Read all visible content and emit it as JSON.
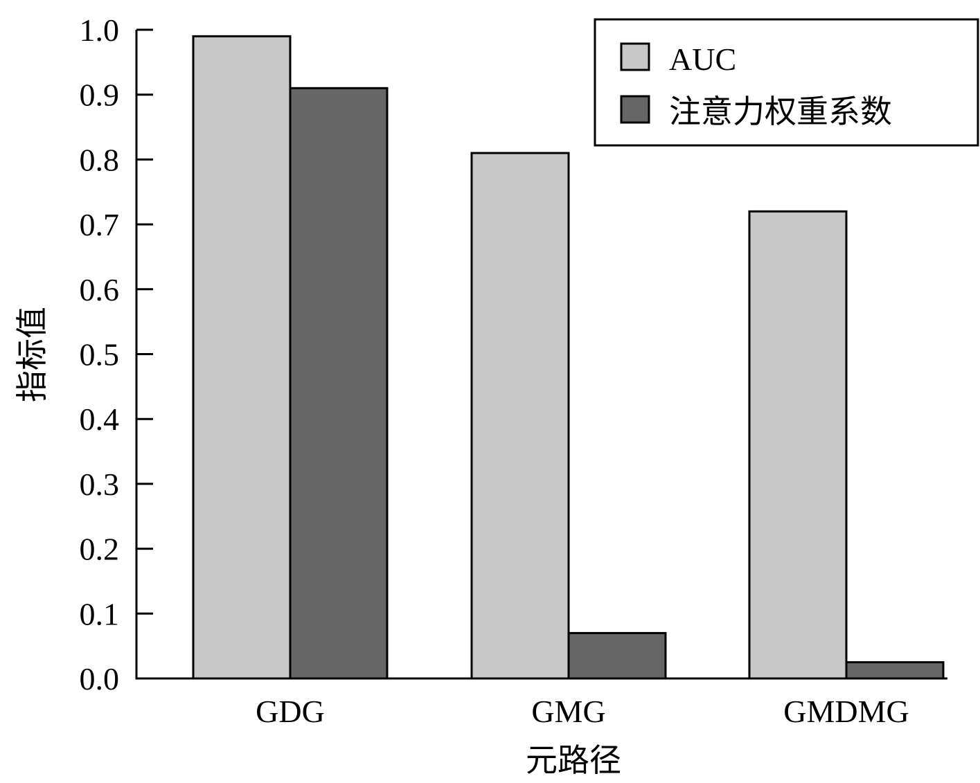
{
  "chart_data": {
    "type": "bar",
    "title": "",
    "xlabel": "元路径",
    "ylabel": "指标值",
    "categories": [
      "GDG",
      "GMG",
      "GMDMG"
    ],
    "series": [
      {
        "name": "AUC",
        "values": [
          0.99,
          0.81,
          0.72
        ],
        "color": "#c8c8c8"
      },
      {
        "name": "注意力权重系数",
        "values": [
          0.91,
          0.07,
          0.025
        ],
        "color": "#666666"
      }
    ],
    "ylim": [
      0,
      1.0
    ],
    "yticks": [
      "0.0",
      "0.1",
      "0.2",
      "0.3",
      "0.4",
      "0.5",
      "0.6",
      "0.7",
      "0.8",
      "0.9",
      "1.0"
    ],
    "grid": false,
    "legend_position": "top-right"
  }
}
